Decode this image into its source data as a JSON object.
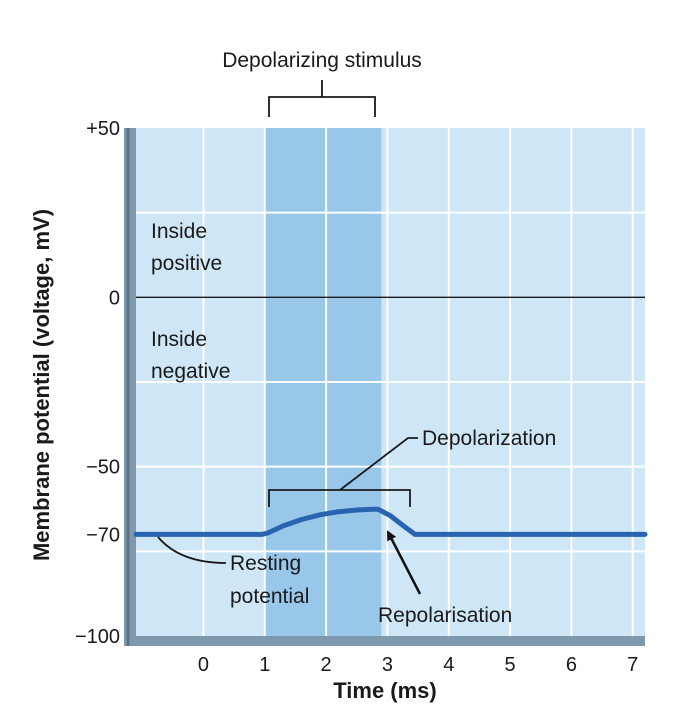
{
  "chart_data": {
    "type": "line",
    "xlabel": "Time (ms)",
    "ylabel": "Membrane potential (voltage, mV)",
    "x_ticks": [
      "0",
      "1",
      "2",
      "3",
      "4",
      "5",
      "6",
      "7"
    ],
    "y_ticks": [
      "+50",
      "0",
      "−50",
      "−70",
      "−100"
    ],
    "y_tick_values": [
      50,
      0,
      -50,
      -70,
      -100
    ],
    "xlim": [
      -1.1,
      7.2
    ],
    "ylim": [
      -100,
      50
    ],
    "grid": true,
    "zero_line": 0,
    "stimulus_window": [
      1,
      2.9
    ],
    "series": [
      {
        "x": [
          -1.1,
          0.95,
          1.05,
          1.3,
          1.6,
          1.9,
          2.2,
          2.5,
          2.75,
          2.85,
          3.05,
          3.3,
          3.45,
          4,
          5,
          6,
          7.2
        ],
        "y": [
          -70,
          -70,
          -69.6,
          -67.5,
          -65.6,
          -64.2,
          -63.3,
          -62.8,
          -62.6,
          -62.6,
          -64.5,
          -68,
          -70,
          -70,
          -70,
          -70,
          -70
        ]
      }
    ],
    "color": "#2a63b0",
    "annotations": {
      "stimulus": "Depolarizing stimulus",
      "inside_positive_1": "Inside",
      "inside_positive_2": "positive",
      "inside_negative_1": "Inside",
      "inside_negative_2": "negative",
      "depolarization": "Depolarization",
      "resting_1": "Resting",
      "resting_2": "potential",
      "repolarisation": "Repolarisation"
    }
  }
}
